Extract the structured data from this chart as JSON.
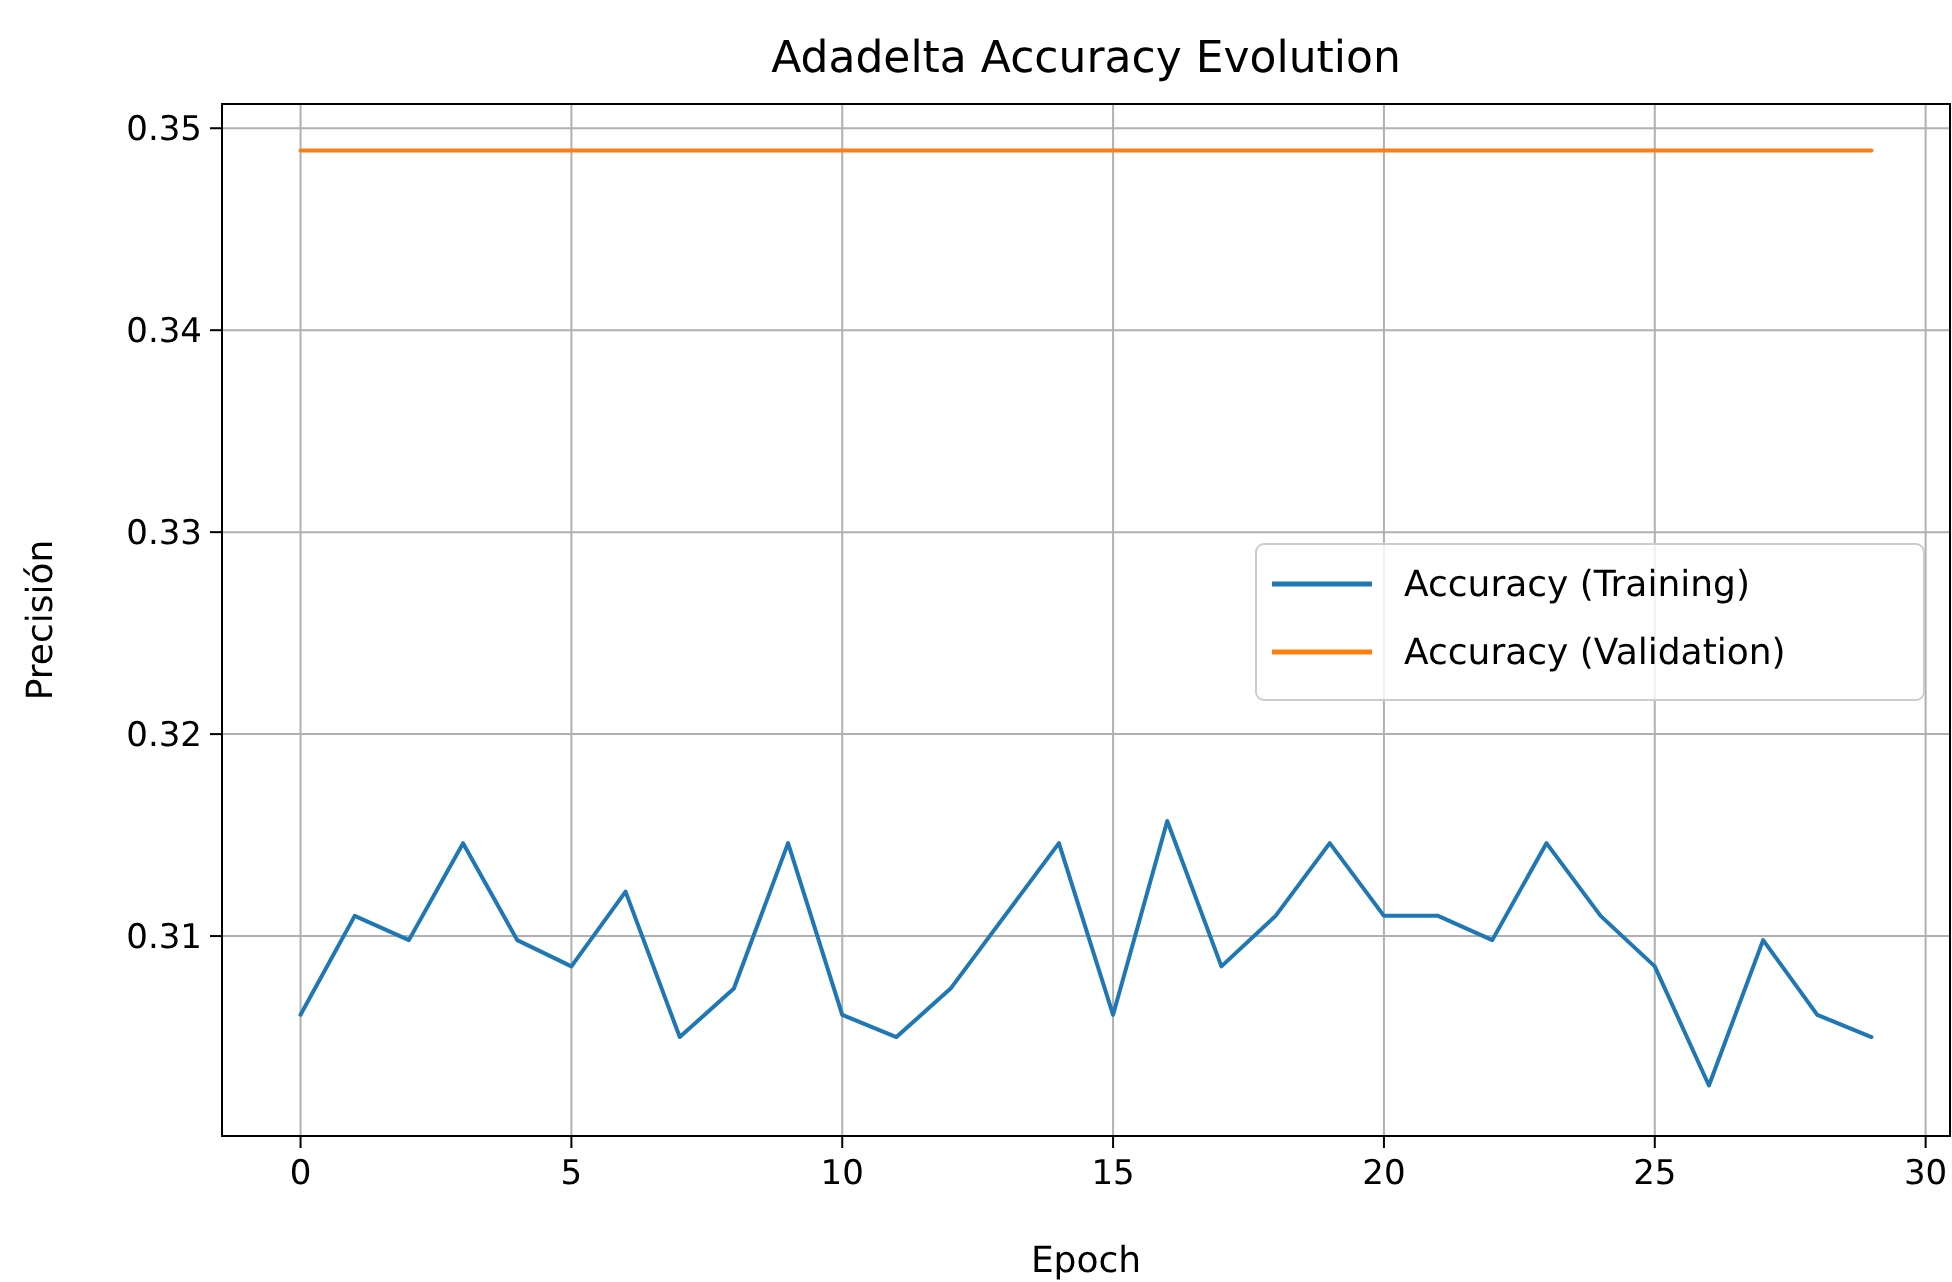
{
  "chart_data": {
    "type": "line",
    "title": "Adadelta Accuracy Evolution",
    "xlabel": "Epoch",
    "ylabel": "Precisión",
    "x": [
      0,
      1,
      2,
      3,
      4,
      5,
      6,
      7,
      8,
      9,
      10,
      11,
      12,
      13,
      14,
      15,
      16,
      17,
      18,
      19,
      20,
      21,
      22,
      23,
      24,
      25,
      26,
      27,
      28,
      29
    ],
    "series": [
      {
        "name": "Accuracy (Training)",
        "color": "#1f77b4",
        "values": [
          0.3061,
          0.311,
          0.3098,
          0.3146,
          0.3098,
          0.3085,
          0.3122,
          0.305,
          0.3074,
          0.3146,
          0.3061,
          0.305,
          0.3074,
          0.311,
          0.3146,
          0.3061,
          0.3157,
          0.3085,
          0.311,
          0.3146,
          0.311,
          0.311,
          0.3098,
          0.3146,
          0.311,
          0.3085,
          0.3026,
          0.3098,
          0.3061,
          0.305
        ]
      },
      {
        "name": "Accuracy (Validation)",
        "color": "#ff7f0e",
        "values": [
          0.3489,
          0.3489,
          0.3489,
          0.3489,
          0.3489,
          0.3489,
          0.3489,
          0.3489,
          0.3489,
          0.3489,
          0.3489,
          0.3489,
          0.3489,
          0.3489,
          0.3489,
          0.3489,
          0.3489,
          0.3489,
          0.3489,
          0.3489,
          0.3489,
          0.3489,
          0.3489,
          0.3489,
          0.3489,
          0.3489,
          0.3489,
          0.3489,
          0.3489,
          0.3489
        ]
      }
    ],
    "xlim": [
      -1.45,
      30.45
    ],
    "xticks": [
      0,
      5,
      10,
      15,
      20,
      25,
      30
    ],
    "ylim": [
      0.3001,
      0.3512
    ],
    "yticks": [
      0.31,
      0.32,
      0.33,
      0.34,
      0.35
    ],
    "grid": true,
    "legend": "right",
    "line_style": "solid",
    "marker": "none"
  }
}
